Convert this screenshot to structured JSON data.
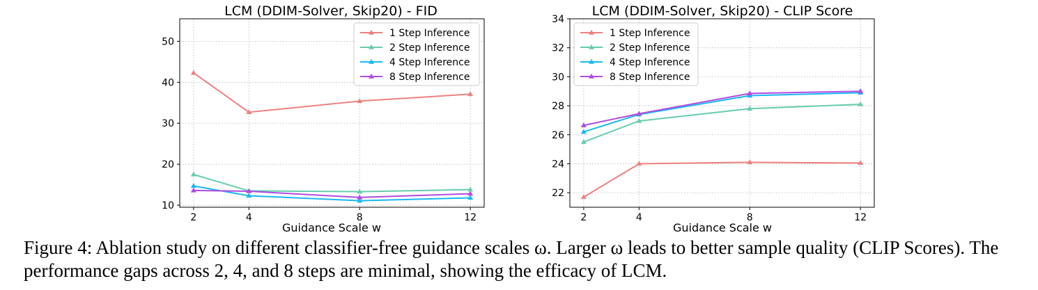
{
  "chart_data": [
    {
      "type": "line",
      "title": "LCM (DDIM-Solver, Skip20) - FID",
      "xlabel": "Guidance Scale w",
      "ylabel": "",
      "x": [
        2,
        4,
        8,
        12
      ],
      "xticks": [
        "2",
        "4",
        "8",
        "12"
      ],
      "yticks": [
        "10",
        "20",
        "30",
        "40",
        "50"
      ],
      "xlim": [
        1.5,
        12.5
      ],
      "ylim": [
        9.5,
        55.5
      ],
      "grid": true,
      "legend_position": "top-right",
      "series": [
        {
          "name": "1 Step Inference",
          "color": "#ee8080",
          "values": [
            42.3,
            32.7,
            35.4,
            37.1
          ]
        },
        {
          "name": "2 Step Inference",
          "color": "#66cdaa",
          "values": [
            17.5,
            13.5,
            13.3,
            13.8
          ]
        },
        {
          "name": "4 Step Inference",
          "color": "#1ab8f0",
          "values": [
            14.7,
            12.3,
            11.1,
            11.8
          ]
        },
        {
          "name": "8 Step Inference",
          "color": "#b04ce0",
          "values": [
            13.6,
            13.4,
            11.9,
            12.8
          ]
        }
      ]
    },
    {
      "type": "line",
      "title": "LCM (DDIM-Solver, Skip20) - CLIP Score",
      "xlabel": "Guidance Scale w",
      "ylabel": "",
      "x": [
        2,
        4,
        8,
        12
      ],
      "xticks": [
        "2",
        "4",
        "8",
        "12"
      ],
      "yticks": [
        "22",
        "24",
        "26",
        "28",
        "30",
        "32",
        "34"
      ],
      "xlim": [
        1.5,
        12.5
      ],
      "ylim": [
        21.0,
        34.0
      ],
      "grid": true,
      "legend_position": "top-left",
      "series": [
        {
          "name": "1 Step Inference",
          "color": "#ee8080",
          "values": [
            21.7,
            24.0,
            24.1,
            24.05
          ]
        },
        {
          "name": "2 Step Inference",
          "color": "#66cdaa",
          "values": [
            25.5,
            26.95,
            27.8,
            28.1
          ]
        },
        {
          "name": "4 Step Inference",
          "color": "#1ab8f0",
          "values": [
            26.2,
            27.4,
            28.7,
            28.9
          ]
        },
        {
          "name": "8 Step Inference",
          "color": "#b04ce0",
          "values": [
            26.65,
            27.45,
            28.85,
            29.0
          ]
        }
      ]
    }
  ],
  "caption": {
    "label": "Figure 4:",
    "text": "Ablation study on different classifier-free guidance scales ω. Larger ω leads to better sample quality (CLIP Scores). The performance gaps across 2, 4, and 8 steps are minimal, showing the efficacy of LCM."
  }
}
